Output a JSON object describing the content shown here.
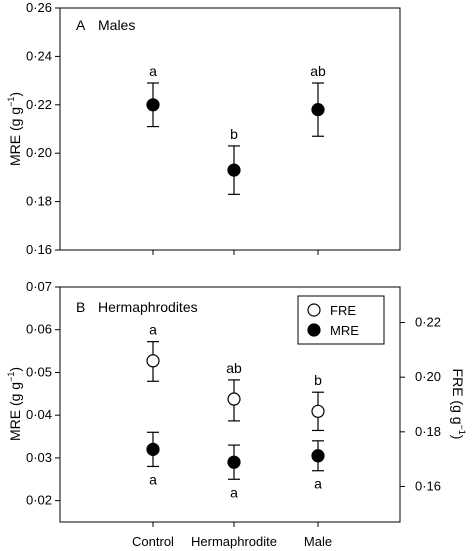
{
  "chart_data": [
    {
      "type": "scatter",
      "panel_letter": "A",
      "title": "Males",
      "categories": [
        "Control",
        "Hermaphrodite",
        "Male"
      ],
      "ylabel": "MRE (g g",
      "ylabel_sup": "−1",
      "ylim": [
        0.16,
        0.26
      ],
      "yticks": [
        "0·16",
        "0·18",
        "0·20",
        "0·22",
        "0·24",
        "0·26"
      ],
      "show_xtick_labels": false,
      "series": [
        {
          "marker": "filled",
          "color": "#000000",
          "values": [
            0.22,
            0.193,
            0.218
          ],
          "err_low": [
            0.211,
            0.183,
            0.207
          ],
          "err_high": [
            0.229,
            0.203,
            0.229
          ],
          "letters": [
            "a",
            "b",
            "ab"
          ],
          "letter_position": "above"
        }
      ]
    },
    {
      "type": "scatter",
      "panel_letter": "B",
      "title": "Hermaphrodites",
      "categories": [
        "Control",
        "Hermaphrodite",
        "Male"
      ],
      "ylabel": "MRE (g g",
      "ylabel_sup": "−1",
      "ylim": [
        0.015,
        0.07
      ],
      "yticks": [
        "0·02",
        "0·03",
        "0·04",
        "0·05",
        "0·06",
        "0·07"
      ],
      "y2label": "FRE (g g",
      "y2label_sup": "−1",
      "y2lim": [
        0.147,
        0.233
      ],
      "y2ticks": [
        "0·16",
        "0·18",
        "0·20",
        "0·22"
      ],
      "legend_placement": "top-right",
      "series": [
        {
          "name": "FRE",
          "axis": "right",
          "marker": "open",
          "color": "#000000",
          "values": [
            0.206,
            0.192,
            0.1875
          ],
          "err_low": [
            0.1985,
            0.184,
            0.1805
          ],
          "err_high": [
            0.213,
            0.199,
            0.1945
          ],
          "letters": [
            "a",
            "ab",
            "b"
          ],
          "letter_position": "above"
        },
        {
          "name": "MRE",
          "axis": "left",
          "marker": "filled",
          "color": "#000000",
          "values": [
            0.032,
            0.029,
            0.0305
          ],
          "err_low": [
            0.028,
            0.025,
            0.027
          ],
          "err_high": [
            0.036,
            0.033,
            0.034
          ],
          "letters": [
            "a",
            "a",
            "a"
          ],
          "letter_position": "below"
        }
      ]
    }
  ]
}
